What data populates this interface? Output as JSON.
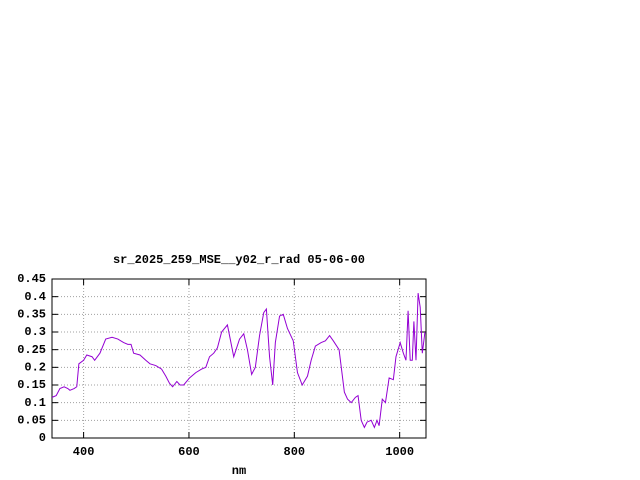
{
  "chart_data": {
    "type": "line",
    "title": "sr_2025_259_MSE__y02_r_rad 05-06-00",
    "x_label": "nm",
    "xlim": [
      340,
      1050
    ],
    "xticks": [
      400,
      600,
      800,
      1000
    ],
    "ylim": [
      0,
      0.45
    ],
    "yticks": [
      0,
      0.05,
      0.1,
      0.15,
      0.2,
      0.25,
      0.3,
      0.35,
      0.4,
      0.45
    ],
    "grid": true,
    "x": [
      340,
      348,
      355,
      363,
      370,
      374,
      382,
      387,
      391,
      400,
      406,
      416,
      421,
      431,
      442,
      454,
      465,
      476,
      484,
      490,
      495,
      507,
      518,
      526,
      537,
      548,
      556,
      563,
      569,
      577,
      583,
      590,
      601,
      613,
      624,
      632,
      639,
      647,
      654,
      662,
      673,
      685,
      696,
      704,
      711,
      719,
      726,
      734,
      742,
      747,
      753,
      759,
      764,
      772,
      779,
      787,
      798,
      806,
      815,
      825,
      832,
      840,
      851,
      859,
      867,
      874,
      885,
      895,
      901,
      908,
      916,
      921,
      927,
      933,
      938,
      946,
      952,
      957,
      961,
      967,
      973,
      980,
      988,
      993,
      1001,
      1007,
      1012,
      1016,
      1020,
      1024,
      1027,
      1031,
      1035,
      1039,
      1043,
      1048
    ],
    "series": [
      {
        "name": "sr_2025_259_MSE__y02_r_rad",
        "color": "#9400d3",
        "values": [
          0.115,
          0.12,
          0.14,
          0.145,
          0.14,
          0.135,
          0.14,
          0.145,
          0.21,
          0.22,
          0.235,
          0.23,
          0.22,
          0.24,
          0.28,
          0.285,
          0.28,
          0.27,
          0.265,
          0.265,
          0.24,
          0.235,
          0.22,
          0.21,
          0.205,
          0.195,
          0.175,
          0.155,
          0.145,
          0.16,
          0.15,
          0.15,
          0.17,
          0.185,
          0.195,
          0.2,
          0.23,
          0.24,
          0.255,
          0.3,
          0.32,
          0.23,
          0.28,
          0.295,
          0.25,
          0.18,
          0.2,
          0.29,
          0.355,
          0.365,
          0.23,
          0.15,
          0.27,
          0.345,
          0.35,
          0.31,
          0.275,
          0.185,
          0.15,
          0.175,
          0.22,
          0.26,
          0.27,
          0.275,
          0.29,
          0.275,
          0.25,
          0.13,
          0.11,
          0.1,
          0.115,
          0.12,
          0.05,
          0.03,
          0.045,
          0.05,
          0.03,
          0.05,
          0.035,
          0.11,
          0.1,
          0.17,
          0.165,
          0.23,
          0.27,
          0.24,
          0.22,
          0.36,
          0.22,
          0.22,
          0.33,
          0.22,
          0.41,
          0.37,
          0.24,
          0.3
        ]
      }
    ]
  }
}
